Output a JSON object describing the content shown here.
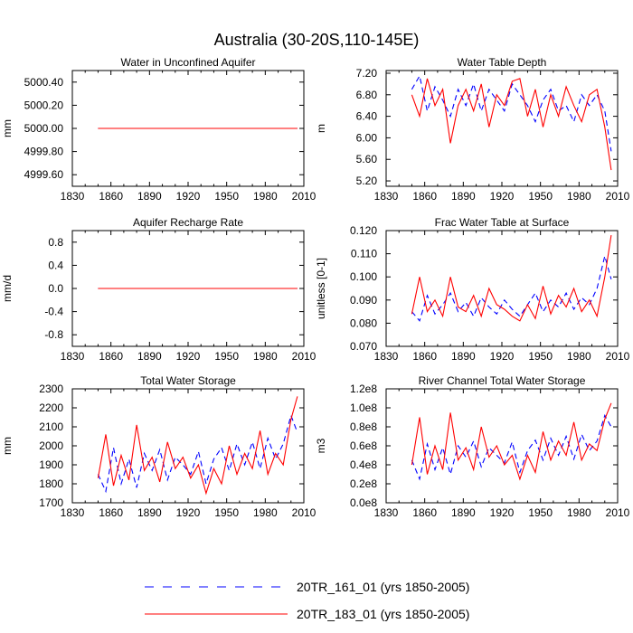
{
  "figure_title": "Australia (30-20S,110-145E)",
  "legend": [
    {
      "label": "20TR_161_01 (yrs 1850-2005)",
      "color": "#0000ff",
      "dash": "dashed"
    },
    {
      "label": "20TR_183_01 (yrs 1850-2005)",
      "color": "#ff0000",
      "dash": "solid"
    }
  ],
  "chart_data": [
    {
      "type": "line",
      "title": "Water in Unconfined Aquifer",
      "ylabel": "mm",
      "xlim": [
        1830,
        2010
      ],
      "ylim": [
        4999.5,
        5000.5
      ],
      "xticks": [
        1830,
        1860,
        1890,
        1920,
        1950,
        1980,
        2010
      ],
      "ytick_labels": [
        "4999.60",
        "4999.80",
        "5000.00",
        "5000.20",
        "5000.40"
      ],
      "x": [
        1850,
        2005
      ],
      "series": [
        {
          "name": "20TR_161_01",
          "values": [
            5000.0,
            5000.0
          ]
        },
        {
          "name": "20TR_183_01",
          "values": [
            5000.0,
            5000.0
          ]
        }
      ]
    },
    {
      "type": "line",
      "title": "Water Table Depth",
      "ylabel": "m",
      "xlim": [
        1830,
        2010
      ],
      "ylim": [
        5.1,
        7.25
      ],
      "xticks": [
        1830,
        1860,
        1890,
        1920,
        1950,
        1980,
        2010
      ],
      "ytick_labels": [
        "5.20",
        "5.60",
        "6.00",
        "6.40",
        "6.80",
        "7.20"
      ],
      "x": [
        1850,
        1856,
        1862,
        1868,
        1874,
        1880,
        1886,
        1892,
        1898,
        1904,
        1910,
        1916,
        1922,
        1928,
        1934,
        1940,
        1946,
        1952,
        1958,
        1964,
        1970,
        1976,
        1982,
        1988,
        1994,
        2000,
        2005
      ],
      "series": [
        {
          "name": "20TR_161_01",
          "values": [
            6.9,
            7.15,
            6.5,
            6.95,
            6.7,
            6.4,
            6.9,
            6.6,
            7.0,
            6.5,
            6.9,
            6.7,
            6.5,
            7.0,
            6.8,
            6.6,
            6.3,
            6.7,
            6.9,
            6.5,
            6.6,
            6.3,
            6.8,
            6.6,
            6.8,
            6.5,
            5.75
          ]
        },
        {
          "name": "20TR_183_01",
          "values": [
            6.8,
            6.4,
            7.1,
            6.6,
            6.9,
            5.9,
            6.6,
            6.9,
            6.5,
            7.0,
            6.2,
            6.8,
            6.6,
            7.05,
            7.1,
            6.4,
            6.9,
            6.2,
            6.8,
            6.4,
            6.95,
            6.6,
            6.3,
            6.8,
            6.9,
            6.2,
            5.4
          ]
        }
      ]
    },
    {
      "type": "line",
      "title": "Aquifer Recharge Rate",
      "ylabel": "mm/d",
      "xlim": [
        1830,
        2010
      ],
      "ylim": [
        -1.0,
        1.0
      ],
      "xticks": [
        1830,
        1860,
        1890,
        1920,
        1950,
        1980,
        2010
      ],
      "ytick_labels": [
        "-0.8",
        "-0.4",
        "0.0",
        "0.4",
        "0.8"
      ],
      "x": [
        1850,
        2005
      ],
      "series": [
        {
          "name": "20TR_161_01",
          "values": [
            0.0,
            0.0
          ]
        },
        {
          "name": "20TR_183_01",
          "values": [
            0.0,
            0.0
          ]
        }
      ]
    },
    {
      "type": "line",
      "title": "Frac Water Table at Surface",
      "ylabel": "unitless [0-1]",
      "xlim": [
        1830,
        2010
      ],
      "ylim": [
        0.07,
        0.12
      ],
      "xticks": [
        1830,
        1860,
        1890,
        1920,
        1950,
        1980,
        2010
      ],
      "ytick_labels": [
        "0.070",
        "0.080",
        "0.090",
        "0.100",
        "0.110",
        "0.120"
      ],
      "x": [
        1850,
        1856,
        1862,
        1868,
        1874,
        1880,
        1886,
        1892,
        1898,
        1904,
        1910,
        1916,
        1922,
        1928,
        1934,
        1940,
        1946,
        1952,
        1958,
        1964,
        1970,
        1976,
        1982,
        1988,
        1994,
        2000,
        2005
      ],
      "series": [
        {
          "name": "20TR_161_01",
          "values": [
            0.085,
            0.081,
            0.092,
            0.084,
            0.088,
            0.093,
            0.085,
            0.089,
            0.083,
            0.091,
            0.087,
            0.084,
            0.09,
            0.086,
            0.083,
            0.088,
            0.093,
            0.085,
            0.09,
            0.087,
            0.093,
            0.086,
            0.091,
            0.088,
            0.095,
            0.109,
            0.099
          ]
        },
        {
          "name": "20TR_183_01",
          "values": [
            0.084,
            0.1,
            0.085,
            0.09,
            0.083,
            0.1,
            0.087,
            0.085,
            0.092,
            0.083,
            0.095,
            0.088,
            0.086,
            0.083,
            0.081,
            0.088,
            0.082,
            0.096,
            0.084,
            0.092,
            0.087,
            0.095,
            0.085,
            0.09,
            0.083,
            0.1,
            0.118
          ]
        }
      ]
    },
    {
      "type": "line",
      "title": "Total Water Storage",
      "ylabel": "mm",
      "xlim": [
        1830,
        2010
      ],
      "ylim": [
        1700,
        2300
      ],
      "xticks": [
        1830,
        1860,
        1890,
        1920,
        1950,
        1980,
        2010
      ],
      "ytick_labels": [
        "1700",
        "1800",
        "1900",
        "2000",
        "2100",
        "2200",
        "2300"
      ],
      "x": [
        1850,
        1856,
        1862,
        1868,
        1874,
        1880,
        1886,
        1892,
        1898,
        1904,
        1910,
        1916,
        1922,
        1928,
        1934,
        1940,
        1946,
        1952,
        1958,
        1964,
        1970,
        1976,
        1982,
        1988,
        1994,
        2000,
        2005
      ],
      "series": [
        {
          "name": "20TR_161_01",
          "values": [
            1850,
            1760,
            1990,
            1800,
            1930,
            1780,
            1960,
            1870,
            1980,
            1820,
            1940,
            1900,
            1850,
            1970,
            1800,
            1930,
            1990,
            1870,
            2010,
            1900,
            2020,
            1880,
            2040,
            1930,
            2010,
            2160,
            2070
          ]
        },
        {
          "name": "20TR_183_01",
          "values": [
            1830,
            2060,
            1790,
            1950,
            1820,
            2110,
            1870,
            1940,
            1810,
            2020,
            1880,
            1940,
            1830,
            1900,
            1750,
            1880,
            1800,
            2000,
            1850,
            1960,
            1880,
            2080,
            1850,
            1960,
            1900,
            2140,
            2260
          ]
        }
      ]
    },
    {
      "type": "line",
      "title": "River Channel Total Water Storage",
      "ylabel": "m3",
      "xlim": [
        1830,
        2010
      ],
      "ylim": [
        0,
        120000000
      ],
      "xticks": [
        1830,
        1860,
        1890,
        1920,
        1950,
        1980,
        2010
      ],
      "ytick_labels": [
        "0.0e8",
        "0.2e8",
        "0.4e8",
        "0.6e8",
        "0.8e8",
        "1.0e8",
        "1.2e8"
      ],
      "x": [
        1850,
        1856,
        1862,
        1868,
        1874,
        1880,
        1886,
        1892,
        1898,
        1904,
        1910,
        1916,
        1922,
        1928,
        1934,
        1940,
        1946,
        1952,
        1958,
        1964,
        1970,
        1976,
        1982,
        1988,
        1994,
        2000,
        2005
      ],
      "series": [
        {
          "name": "20TR_161_01",
          "values": [
            45000000,
            25000000,
            62000000,
            35000000,
            58000000,
            30000000,
            60000000,
            48000000,
            65000000,
            38000000,
            58000000,
            50000000,
            42000000,
            64000000,
            32000000,
            55000000,
            66000000,
            45000000,
            68000000,
            50000000,
            70000000,
            46000000,
            72000000,
            55000000,
            65000000,
            92000000,
            80000000
          ]
        },
        {
          "name": "20TR_183_01",
          "values": [
            40000000,
            90000000,
            30000000,
            60000000,
            35000000,
            95000000,
            45000000,
            58000000,
            35000000,
            80000000,
            48000000,
            60000000,
            40000000,
            50000000,
            25000000,
            50000000,
            32000000,
            75000000,
            45000000,
            65000000,
            50000000,
            85000000,
            45000000,
            62000000,
            55000000,
            88000000,
            105000000
          ]
        }
      ]
    }
  ]
}
